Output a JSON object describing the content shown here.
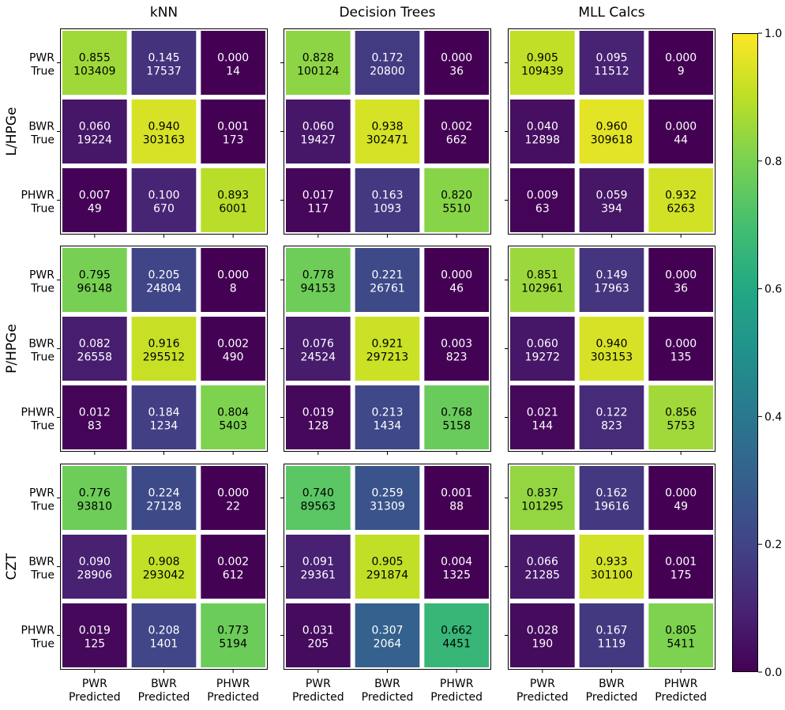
{
  "chart_data": {
    "type": "heatmap",
    "colormap": "viridis",
    "value_range": [
      0,
      1
    ],
    "columns": [
      "kNN",
      "Decision Trees",
      "MLL Calcs"
    ],
    "rows": [
      "L/HPGe",
      "P/HPGe",
      "CZT"
    ],
    "y_tick_labels": [
      [
        "PWR",
        "True"
      ],
      [
        "BWR",
        "True"
      ],
      [
        "PHWR",
        "True"
      ]
    ],
    "x_tick_labels": [
      [
        "PWR",
        "Predicted"
      ],
      [
        "BWR",
        "Predicted"
      ],
      [
        "PHWR",
        "Predicted"
      ]
    ],
    "colorbar_ticks": [
      "0.0",
      "0.2",
      "0.4",
      "0.6",
      "0.8",
      "1.0"
    ],
    "matrices": [
      [
        {
          "fractions": [
            [
              0.855,
              0.145,
              0.0
            ],
            [
              0.06,
              0.94,
              0.001
            ],
            [
              0.007,
              0.1,
              0.893
            ]
          ],
          "fraction_labels": [
            [
              "0.855",
              "0.145",
              "0.000"
            ],
            [
              "0.060",
              "0.940",
              "0.001"
            ],
            [
              "0.007",
              "0.100",
              "0.893"
            ]
          ],
          "counts": [
            [
              "103409",
              "17537",
              "14"
            ],
            [
              "19224",
              "303163",
              "173"
            ],
            [
              "49",
              "670",
              "6001"
            ]
          ]
        },
        {
          "fractions": [
            [
              0.828,
              0.172,
              0.0
            ],
            [
              0.06,
              0.938,
              0.002
            ],
            [
              0.017,
              0.163,
              0.82
            ]
          ],
          "fraction_labels": [
            [
              "0.828",
              "0.172",
              "0.000"
            ],
            [
              "0.060",
              "0.938",
              "0.002"
            ],
            [
              "0.017",
              "0.163",
              "0.820"
            ]
          ],
          "counts": [
            [
              "100124",
              "20800",
              "36"
            ],
            [
              "19427",
              "302471",
              "662"
            ],
            [
              "117",
              "1093",
              "5510"
            ]
          ]
        },
        {
          "fractions": [
            [
              0.905,
              0.095,
              0.0
            ],
            [
              0.04,
              0.96,
              0.0
            ],
            [
              0.009,
              0.059,
              0.932
            ]
          ],
          "fraction_labels": [
            [
              "0.905",
              "0.095",
              "0.000"
            ],
            [
              "0.040",
              "0.960",
              "0.000"
            ],
            [
              "0.009",
              "0.059",
              "0.932"
            ]
          ],
          "counts": [
            [
              "109439",
              "11512",
              "9"
            ],
            [
              "12898",
              "309618",
              "44"
            ],
            [
              "63",
              "394",
              "6263"
            ]
          ]
        }
      ],
      [
        {
          "fractions": [
            [
              0.795,
              0.205,
              0.0
            ],
            [
              0.082,
              0.916,
              0.002
            ],
            [
              0.012,
              0.184,
              0.804
            ]
          ],
          "fraction_labels": [
            [
              "0.795",
              "0.205",
              "0.000"
            ],
            [
              "0.082",
              "0.916",
              "0.002"
            ],
            [
              "0.012",
              "0.184",
              "0.804"
            ]
          ],
          "counts": [
            [
              "96148",
              "24804",
              "8"
            ],
            [
              "26558",
              "295512",
              "490"
            ],
            [
              "83",
              "1234",
              "5403"
            ]
          ]
        },
        {
          "fractions": [
            [
              0.778,
              0.221,
              0.0
            ],
            [
              0.076,
              0.921,
              0.003
            ],
            [
              0.019,
              0.213,
              0.768
            ]
          ],
          "fraction_labels": [
            [
              "0.778",
              "0.221",
              "0.000"
            ],
            [
              "0.076",
              "0.921",
              "0.003"
            ],
            [
              "0.019",
              "0.213",
              "0.768"
            ]
          ],
          "counts": [
            [
              "94153",
              "26761",
              "46"
            ],
            [
              "24524",
              "297213",
              "823"
            ],
            [
              "128",
              "1434",
              "5158"
            ]
          ]
        },
        {
          "fractions": [
            [
              0.851,
              0.149,
              0.0
            ],
            [
              0.06,
              0.94,
              0.0
            ],
            [
              0.021,
              0.122,
              0.856
            ]
          ],
          "fraction_labels": [
            [
              "0.851",
              "0.149",
              "0.000"
            ],
            [
              "0.060",
              "0.940",
              "0.000"
            ],
            [
              "0.021",
              "0.122",
              "0.856"
            ]
          ],
          "counts": [
            [
              "102961",
              "17963",
              "36"
            ],
            [
              "19272",
              "303153",
              "135"
            ],
            [
              "144",
              "823",
              "5753"
            ]
          ]
        }
      ],
      [
        {
          "fractions": [
            [
              0.776,
              0.224,
              0.0
            ],
            [
              0.09,
              0.908,
              0.002
            ],
            [
              0.019,
              0.208,
              0.773
            ]
          ],
          "fraction_labels": [
            [
              "0.776",
              "0.224",
              "0.000"
            ],
            [
              "0.090",
              "0.908",
              "0.002"
            ],
            [
              "0.019",
              "0.208",
              "0.773"
            ]
          ],
          "counts": [
            [
              "93810",
              "27128",
              "22"
            ],
            [
              "28906",
              "293042",
              "612"
            ],
            [
              "125",
              "1401",
              "5194"
            ]
          ]
        },
        {
          "fractions": [
            [
              0.74,
              0.259,
              0.001
            ],
            [
              0.091,
              0.905,
              0.004
            ],
            [
              0.031,
              0.307,
              0.662
            ]
          ],
          "fraction_labels": [
            [
              "0.740",
              "0.259",
              "0.001"
            ],
            [
              "0.091",
              "0.905",
              "0.004"
            ],
            [
              "0.031",
              "0.307",
              "0.662"
            ]
          ],
          "counts": [
            [
              "89563",
              "31309",
              "88"
            ],
            [
              "29361",
              "291874",
              "1325"
            ],
            [
              "205",
              "2064",
              "4451"
            ]
          ]
        },
        {
          "fractions": [
            [
              0.837,
              0.162,
              0.0
            ],
            [
              0.066,
              0.933,
              0.001
            ],
            [
              0.028,
              0.167,
              0.805
            ]
          ],
          "fraction_labels": [
            [
              "0.837",
              "0.162",
              "0.000"
            ],
            [
              "0.066",
              "0.933",
              "0.001"
            ],
            [
              "0.028",
              "0.167",
              "0.805"
            ]
          ],
          "counts": [
            [
              "101295",
              "19616",
              "49"
            ],
            [
              "21285",
              "301100",
              "175"
            ],
            [
              "190",
              "1119",
              "5411"
            ]
          ]
        }
      ]
    ]
  }
}
